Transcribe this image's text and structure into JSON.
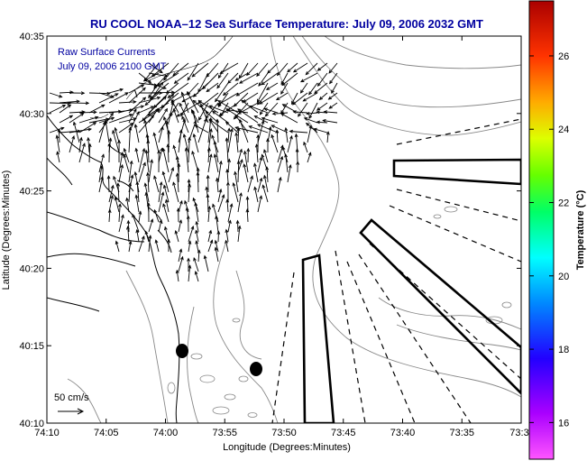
{
  "title": "RU COOL  NOAA–12  Sea Surface Temperature:  July 09, 2006 2032 GMT",
  "annotation": {
    "line1": "Raw Surface Currents",
    "line2": "July 09, 2006 2100 GMT"
  },
  "scale_label": "50 cm/s",
  "x_axis": {
    "label": "Longitude (Degrees:Minutes)",
    "ticks": [
      "74:10",
      "74:05",
      "74:00",
      "73:55",
      "73:50",
      "73:45",
      "73:40",
      "73:35",
      "73:3"
    ]
  },
  "y_axis": {
    "label": "Latitude (Degrees:Minutes)",
    "ticks": [
      "40:35",
      "40:30",
      "40:25",
      "40:20",
      "40:15",
      "40:10"
    ]
  },
  "colorbar": {
    "label": "Temperature (°C)",
    "ticks": [
      "26",
      "24",
      "22",
      "20",
      "18",
      "16"
    ],
    "range": [
      15,
      27.5
    ]
  },
  "colors": {
    "title": "#0000a0",
    "coast": "#000000",
    "bathymetry": "#808080"
  }
}
